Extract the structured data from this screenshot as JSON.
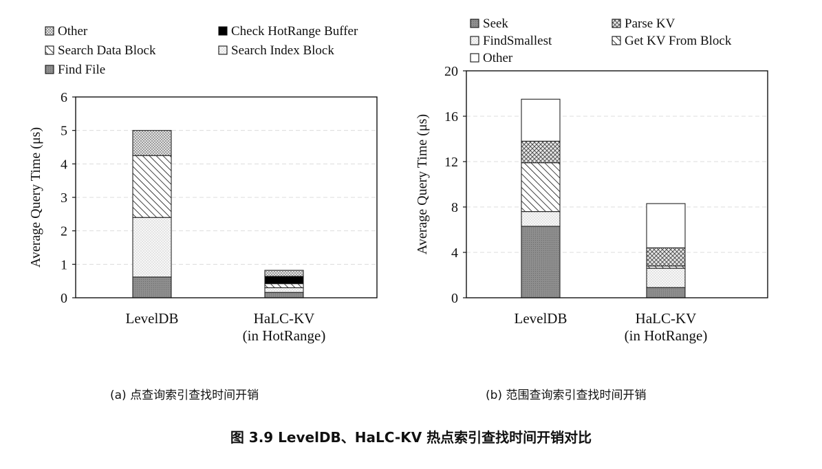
{
  "chart_data": [
    {
      "type": "bar",
      "stacked": true,
      "title": "",
      "xlabel": "",
      "ylabel": "Average Query Time (μs)",
      "ylim": [
        0,
        6
      ],
      "yticks": [
        0,
        1,
        2,
        3,
        4,
        5,
        6
      ],
      "grid": true,
      "legend_position": "top-left",
      "categories": [
        "LevelDB",
        "HaLC-KV\n(in HotRange)"
      ],
      "legend_order": [
        "Other",
        "Check HotRange Buffer",
        "Search Data Block",
        "Search Index Block",
        "Find File"
      ],
      "series": [
        {
          "name": "Find File",
          "values": [
            0.62,
            0.16
          ],
          "pattern": "gray",
          "color": "#8c8c8c"
        },
        {
          "name": "Search Index Block",
          "values": [
            1.78,
            0.14
          ],
          "pattern": "light-dots",
          "color": "#eeeeee"
        },
        {
          "name": "Search Data Block",
          "values": [
            1.85,
            0.12
          ],
          "pattern": "hatch",
          "color": "#ffffff"
        },
        {
          "name": "Check HotRange Buffer",
          "values": [
            0,
            0.22
          ],
          "pattern": "black",
          "color": "#000000"
        },
        {
          "name": "Other",
          "values": [
            0.75,
            0.18
          ],
          "pattern": "dense-dots",
          "color": "#d8d8d8"
        }
      ],
      "caption": "(a) 点查询索引查找时间开销"
    },
    {
      "type": "bar",
      "stacked": true,
      "title": "",
      "xlabel": "",
      "ylabel": "Average Query Time (μs)",
      "ylim": [
        0,
        20
      ],
      "yticks": [
        0,
        4,
        8,
        12,
        16,
        20
      ],
      "grid": true,
      "legend_position": "top",
      "categories": [
        "LevelDB",
        "HaLC-KV\n(in HotRange)"
      ],
      "legend_order": [
        "Seek",
        "Parse KV",
        "FindSmallest",
        "Get KV From Block",
        "Other"
      ],
      "series": [
        {
          "name": "Seek",
          "values": [
            6.3,
            0.9
          ],
          "pattern": "gray",
          "color": "#8c8c8c"
        },
        {
          "name": "FindSmallest",
          "values": [
            1.3,
            1.7
          ],
          "pattern": "light-dots",
          "color": "#eeeeee"
        },
        {
          "name": "Get KV From Block",
          "values": [
            4.3,
            0.2
          ],
          "pattern": "hatch",
          "color": "#ffffff"
        },
        {
          "name": "Parse KV",
          "values": [
            1.9,
            1.6
          ],
          "pattern": "cross",
          "color": "#d8d8d8"
        },
        {
          "name": "Other",
          "values": [
            3.7,
            3.9
          ],
          "pattern": "white",
          "color": "#ffffff"
        }
      ],
      "caption": "(b) 范围查询索引查找时间开销"
    }
  ],
  "figure_title": "图 3.9    LevelDB、HaLC-KV 热点索引查找时间开销对比"
}
